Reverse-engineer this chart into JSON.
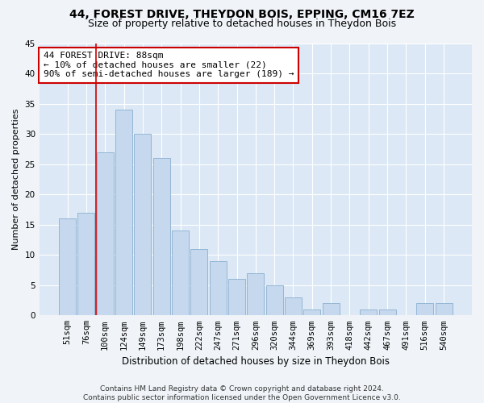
{
  "title": "44, FOREST DRIVE, THEYDON BOIS, EPPING, CM16 7EZ",
  "subtitle": "Size of property relative to detached houses in Theydon Bois",
  "xlabel": "Distribution of detached houses by size in Theydon Bois",
  "ylabel": "Number of detached properties",
  "categories": [
    "51sqm",
    "76sqm",
    "100sqm",
    "124sqm",
    "149sqm",
    "173sqm",
    "198sqm",
    "222sqm",
    "247sqm",
    "271sqm",
    "296sqm",
    "320sqm",
    "344sqm",
    "369sqm",
    "393sqm",
    "418sqm",
    "442sqm",
    "467sqm",
    "491sqm",
    "516sqm",
    "540sqm"
  ],
  "values": [
    16,
    17,
    27,
    34,
    30,
    26,
    14,
    11,
    9,
    6,
    7,
    5,
    3,
    1,
    2,
    0,
    1,
    1,
    0,
    2,
    2
  ],
  "bar_color": "#c5d8ed",
  "bar_edge_color": "#8ab0d0",
  "bg_color": "#dce8f5",
  "grid_color": "#ffffff",
  "vline_x": 1.5,
  "vline_color": "#cc0000",
  "annotation_text": "44 FOREST DRIVE: 88sqm\n← 10% of detached houses are smaller (22)\n90% of semi-detached houses are larger (189) →",
  "annotation_box_color": "#ffffff",
  "annotation_box_edge": "#cc0000",
  "ylim": [
    0,
    45
  ],
  "yticks": [
    0,
    5,
    10,
    15,
    20,
    25,
    30,
    35,
    40,
    45
  ],
  "footer": "Contains HM Land Registry data © Crown copyright and database right 2024.\nContains public sector information licensed under the Open Government Licence v3.0.",
  "title_fontsize": 10,
  "subtitle_fontsize": 9,
  "xlabel_fontsize": 8.5,
  "ylabel_fontsize": 8,
  "tick_fontsize": 7.5,
  "annotation_fontsize": 8
}
